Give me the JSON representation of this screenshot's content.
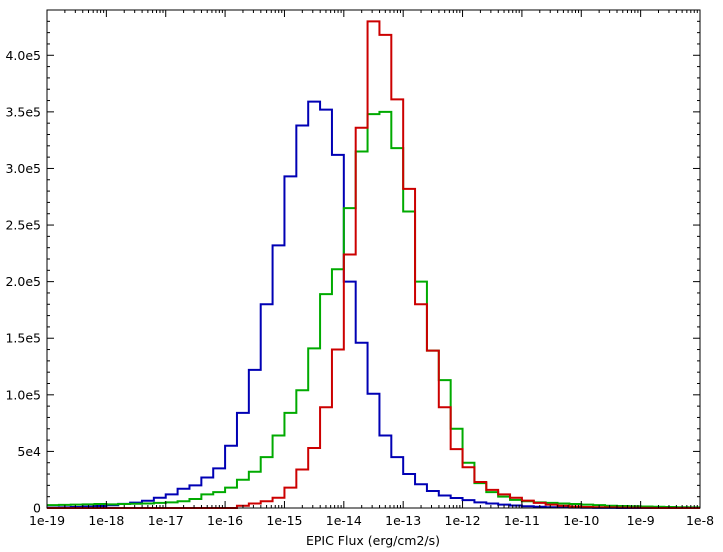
{
  "chart_data": {
    "type": "histogram",
    "xlabel": "EPIC Flux (erg/cm2/s)",
    "ylabel": "",
    "x_scale": "log",
    "xlim": [
      1e-19,
      1e-08
    ],
    "ylim": [
      0,
      440000
    ],
    "x_tick_values": [
      1e-19,
      1e-18,
      1e-17,
      1e-16,
      1e-15,
      1e-14,
      1e-13,
      1e-12,
      1e-11,
      1e-10,
      1e-09,
      1e-08
    ],
    "x_tick_labels": [
      "1e-19",
      "1e-18",
      "1e-17",
      "1e-16",
      "1e-15",
      "1e-14",
      "1e-13",
      "1e-12",
      "1e-11",
      "1e-10",
      "1e-9",
      "1e-8"
    ],
    "y_tick_values": [
      0,
      50000,
      100000,
      150000,
      200000,
      250000,
      300000,
      350000,
      400000
    ],
    "y_tick_labels": [
      "0",
      "5e4",
      "1.0e5",
      "1.5e5",
      "2.0e5",
      "2.5e5",
      "3.0e5",
      "3.5e5",
      "4.0e5"
    ],
    "bins_per_decade": 5,
    "bin_start_log10": -19,
    "grid": false,
    "legend": "none",
    "series": [
      {
        "color": "#0000b4",
        "values": [
          300,
          600,
          900,
          1200,
          1800,
          2400,
          3600,
          4800,
          6400,
          9000,
          12000,
          17000,
          20000,
          27000,
          35000,
          55000,
          84000,
          122000,
          180000,
          232000,
          293000,
          338000,
          359000,
          352000,
          312000,
          200000,
          146000,
          101000,
          64000,
          45000,
          30000,
          21000,
          15000,
          11000,
          8800,
          7000,
          5000,
          4000,
          3000,
          2200,
          1500,
          1100,
          700,
          500,
          300,
          200,
          120,
          80,
          40,
          20,
          10,
          0,
          0,
          0,
          0
        ]
      },
      {
        "color": "#00aa00",
        "values": [
          2500,
          2800,
          3000,
          3200,
          3500,
          3200,
          3500,
          3800,
          4000,
          4500,
          5000,
          6000,
          8000,
          12000,
          14000,
          18000,
          25000,
          32000,
          45000,
          64000,
          84000,
          104000,
          141000,
          189000,
          211000,
          265000,
          315000,
          348000,
          350000,
          318000,
          262000,
          200000,
          139000,
          113000,
          70000,
          40000,
          22000,
          14000,
          10000,
          7200,
          6000,
          5000,
          4500,
          4000,
          3500,
          3000,
          2500,
          2000,
          1800,
          1500,
          1300,
          1100,
          900,
          700,
          500
        ]
      },
      {
        "color": "#cc0000",
        "values": [
          0,
          0,
          0,
          0,
          0,
          0,
          0,
          0,
          0,
          0,
          0,
          0,
          0,
          0,
          0,
          0,
          2000,
          4000,
          6000,
          9000,
          18000,
          34000,
          53000,
          89000,
          140000,
          224000,
          336000,
          430000,
          418000,
          361000,
          282000,
          180000,
          139000,
          89000,
          52000,
          36000,
          23000,
          16000,
          12000,
          9000,
          6500,
          4500,
          3000,
          2000,
          1300,
          900,
          700,
          500,
          300,
          200,
          100,
          50,
          0,
          0,
          0
        ]
      }
    ]
  }
}
